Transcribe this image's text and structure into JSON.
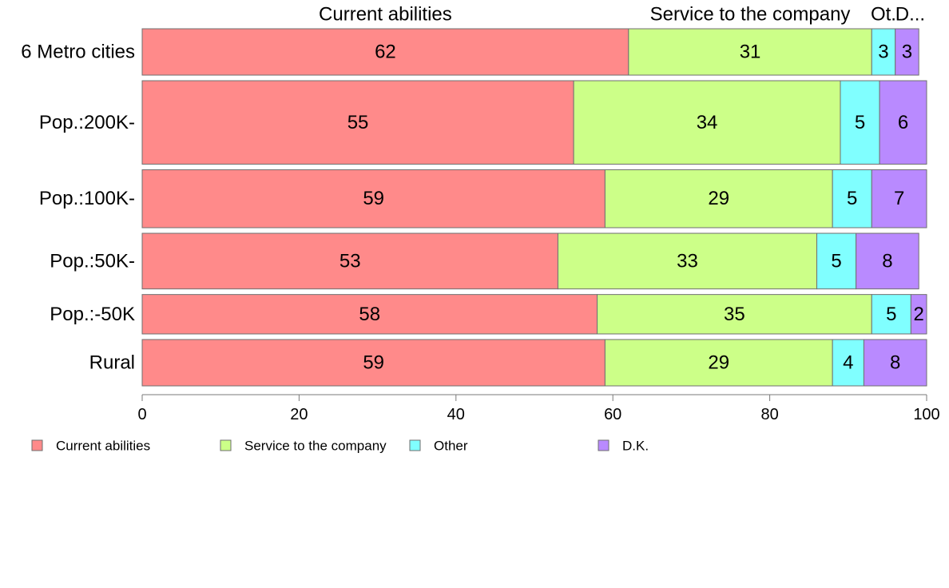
{
  "chart_data": {
    "type": "bar",
    "orientation": "horizontal",
    "stacked": true,
    "categories": [
      "6 Metro cities",
      "Pop.:200K-",
      "Pop.:100K-",
      "Pop.:50K-",
      "Pop.:-50K",
      "Rural"
    ],
    "series": [
      {
        "name": "Current abilities",
        "color": "#ff8a8a",
        "values": [
          62,
          55,
          59,
          53,
          58,
          59
        ]
      },
      {
        "name": "Service to the company",
        "color": "#ccff88",
        "values": [
          31,
          34,
          29,
          33,
          35,
          29
        ]
      },
      {
        "name": "Other",
        "color": "#80ffff",
        "values": [
          3,
          5,
          5,
          5,
          5,
          4
        ]
      },
      {
        "name": "D.K.",
        "color": "#b98aff",
        "values": [
          3,
          6,
          7,
          8,
          2,
          8
        ]
      }
    ],
    "bar_widths": [
      1,
      1.8,
      1.25,
      1.2,
      0.85,
      1.0
    ],
    "top_labels": [
      "Current abilities",
      "Service to the company",
      "Ot.",
      "D..."
    ],
    "xlim": [
      0,
      100
    ],
    "xticks": [
      0,
      20,
      40,
      60,
      80,
      100
    ],
    "legend_position": "bottom-left",
    "grid": false
  }
}
